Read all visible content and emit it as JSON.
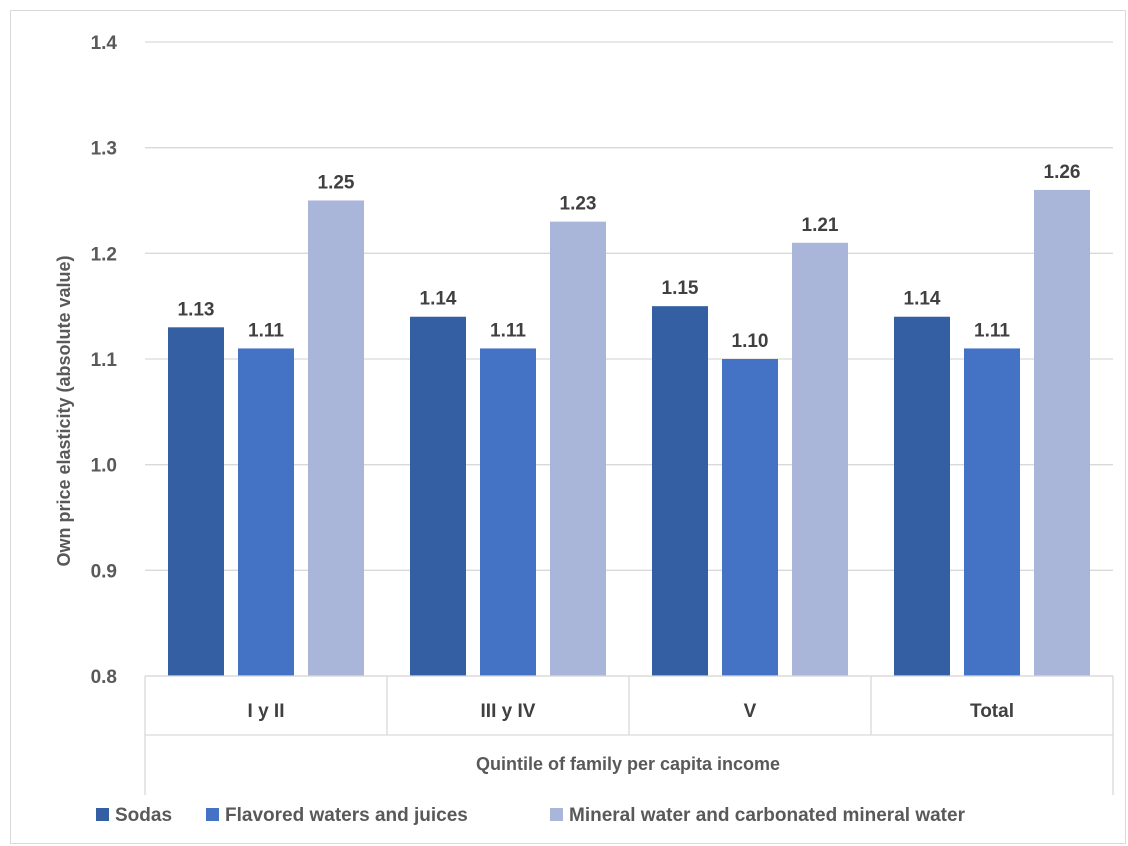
{
  "chart_data": {
    "type": "bar",
    "title": "",
    "xlabel": "Quintile of family per capita income",
    "ylabel": "Own price elasticity (absolute value)",
    "ylim": [
      0.8,
      1.4
    ],
    "yticks": [
      "0.8",
      "0.9",
      "1.0",
      "1.1",
      "1.2",
      "1.3",
      "1.4"
    ],
    "categories": [
      "I y II",
      "III y IV",
      "V",
      "Total"
    ],
    "series": [
      {
        "name": "Sodas",
        "color": "#355fa3",
        "values": [
          1.13,
          1.14,
          1.15,
          1.14
        ],
        "labels": [
          "1.13",
          "1.14",
          "1.15",
          "1.14"
        ]
      },
      {
        "name": "Flavored waters and juices",
        "color": "#4472c4",
        "values": [
          1.11,
          1.11,
          1.1,
          1.11
        ],
        "labels": [
          "1.11",
          "1.11",
          "1.10",
          "1.11"
        ]
      },
      {
        "name": "Mineral water and carbonated mineral water",
        "color": "#a9b6da",
        "values": [
          1.25,
          1.23,
          1.21,
          1.26
        ],
        "labels": [
          "1.25",
          "1.23",
          "1.21",
          "1.26"
        ]
      }
    ],
    "grid": true,
    "legend": "bottom"
  }
}
